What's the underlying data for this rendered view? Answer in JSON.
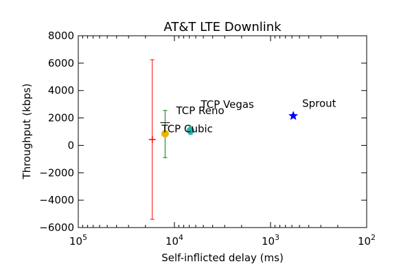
{
  "chart_data": {
    "type": "scatter",
    "title": "AT&T LTE Downlink",
    "xlabel": "Self-inflicted delay (ms)",
    "ylabel": "Throughput (kbps)",
    "x_scale": "log",
    "x_reversed": true,
    "xlim": [
      100000,
      100
    ],
    "ylim": [
      -6000,
      8000
    ],
    "grid": false,
    "x_ticks": [
      {
        "value": 100000,
        "base": "10",
        "exp": "5"
      },
      {
        "value": 10000,
        "base": "10",
        "exp": "4"
      },
      {
        "value": 1000,
        "base": "10",
        "exp": "3"
      },
      {
        "value": 100,
        "base": "10",
        "exp": "2"
      }
    ],
    "y_ticks": [
      {
        "value": 8000,
        "label": "8000"
      },
      {
        "value": 6000,
        "label": "6000"
      },
      {
        "value": 4000,
        "label": "4000"
      },
      {
        "value": 2000,
        "label": "2000"
      },
      {
        "value": 0,
        "label": "0"
      },
      {
        "value": -2000,
        "label": "−2000"
      },
      {
        "value": -4000,
        "label": "−4000"
      },
      {
        "value": -6000,
        "label": "−6000"
      }
    ],
    "points": [
      {
        "id": "red-marker",
        "label": "",
        "x": 17000,
        "y": 430,
        "yerr_low": -5400,
        "yerr_high": 6250,
        "marker": "plus",
        "color": "#ff0000",
        "label_color": "#000000"
      },
      {
        "id": "tcp-cubic",
        "label": "TCP Cubic",
        "x": 12500,
        "y": 850,
        "yerr_low": -900,
        "yerr_high": 2550,
        "marker": "circle",
        "color": "#e8b800",
        "err_color": "#008000",
        "label_color": "#000000"
      },
      {
        "id": "tcp-reno",
        "label": "TCP Reno",
        "x": 6800,
        "y": 1080,
        "yerr_low": 780,
        "yerr_high": 1380,
        "marker": "circle",
        "color": "#20b2aa",
        "label_color": "#000000"
      },
      {
        "id": "tcp-vegas",
        "label": "TCP Vegas",
        "x": 6800,
        "y": 1080,
        "yerr_low": null,
        "yerr_high": null,
        "marker": "none",
        "color": "#20b2aa",
        "label_color": "#000000"
      },
      {
        "id": "sprout",
        "label": "Sprout",
        "x": 580,
        "y": 2150,
        "yerr_low": null,
        "yerr_high": null,
        "marker": "star",
        "color": "#0000ff",
        "label_color": "#000000"
      }
    ]
  }
}
